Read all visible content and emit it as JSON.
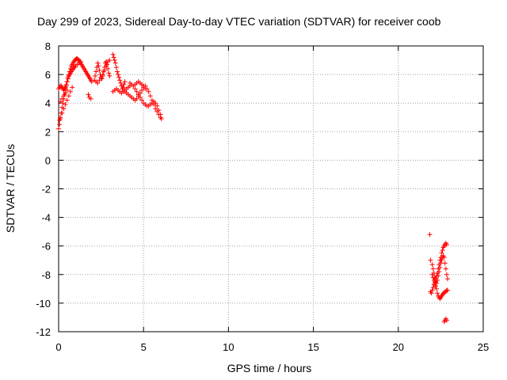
{
  "chart_data": {
    "type": "scatter",
    "title": "Day 299 of 2023, Sidereal Day-to-day VTEC variation (SDTVAR) for receiver coob",
    "xlabel": "GPS time / hours",
    "ylabel": "SDTVAR / TECUs",
    "xlim": [
      0,
      25
    ],
    "ylim": [
      -12,
      8
    ],
    "xticks": [
      0,
      5,
      10,
      15,
      20,
      25
    ],
    "yticks": [
      -12,
      -10,
      -8,
      -6,
      -4,
      -2,
      0,
      2,
      4,
      6,
      8
    ],
    "grid": true,
    "marker": "+",
    "color": "#ff0000",
    "series": [
      {
        "name": "SDTVAR",
        "x": [
          0.0,
          0.05,
          0.1,
          0.15,
          0.2,
          0.25,
          0.3,
          0.35,
          0.4,
          0.45,
          0.5,
          0.55,
          0.6,
          0.65,
          0.7,
          0.75,
          0.8,
          0.85,
          0.9,
          0.95,
          1.0,
          1.05,
          1.1,
          1.15,
          1.2,
          1.25,
          1.3,
          1.35,
          1.4,
          1.45,
          1.5,
          1.55,
          1.6,
          1.65,
          1.7,
          1.75,
          1.8,
          1.85,
          1.9,
          1.95,
          0.0,
          0.05,
          0.1,
          0.15,
          0.2,
          0.25,
          0.3,
          0.35,
          0.4,
          0.45,
          0.5,
          0.55,
          0.6,
          0.65,
          0.7,
          0.75,
          0.8,
          0.85,
          0.9,
          0.95,
          1.0,
          1.1,
          1.2,
          1.3,
          0.05,
          0.1,
          0.2,
          0.3,
          0.4,
          0.5,
          0.6,
          0.7,
          0.8,
          0.1,
          0.2,
          0.3,
          0.4,
          0.5,
          1.75,
          1.8,
          1.9,
          2.1,
          2.15,
          2.2,
          2.25,
          2.3,
          2.35,
          2.4,
          2.45,
          2.5,
          2.55,
          2.6,
          2.65,
          2.7,
          2.75,
          2.8,
          2.85,
          2.9,
          2.95,
          3.0,
          2.2,
          2.3,
          2.4,
          2.5,
          2.6,
          2.7,
          2.8,
          2.9,
          3.0,
          3.2,
          3.25,
          3.3,
          3.35,
          3.4,
          3.45,
          3.5,
          3.55,
          3.6,
          3.65,
          3.7,
          3.75,
          3.8,
          3.85,
          3.9,
          3.2,
          3.3,
          3.4,
          3.5,
          3.6,
          3.7,
          3.8,
          3.9,
          4.0,
          4.1,
          4.2,
          3.9,
          4.0,
          4.1,
          4.2,
          4.3,
          4.4,
          4.5,
          4.6,
          4.7,
          4.8,
          4.9,
          5.0,
          5.1,
          5.2,
          5.3,
          5.4,
          5.5,
          5.6,
          5.7,
          5.8,
          5.9,
          6.0,
          6.05,
          4.2,
          4.3,
          4.4,
          4.5,
          4.6,
          4.7,
          4.8,
          4.9,
          5.0,
          5.1,
          5.2,
          5.3,
          5.4,
          5.5,
          5.6,
          5.7,
          5.8,
          5.9,
          6.0,
          4.5,
          4.6,
          4.7,
          4.8,
          4.9,
          5.0,
          5.1,
          21.9,
          22.0,
          22.05,
          22.1,
          22.15,
          22.2,
          22.25,
          22.3,
          22.35,
          22.4,
          22.45,
          22.5,
          22.55,
          22.6,
          22.65,
          22.7,
          22.75,
          22.8,
          22.85,
          22.9,
          21.9,
          21.95,
          22.0,
          22.05,
          22.1,
          22.15,
          22.2,
          22.25,
          22.3,
          22.35,
          22.4,
          22.45,
          22.5,
          22.55,
          22.6,
          22.65,
          22.7,
          22.75,
          22.8,
          22.85,
          22.0,
          22.05,
          22.1,
          22.15,
          22.2,
          22.25,
          22.3,
          22.35,
          22.4,
          22.45,
          22.5,
          22.55,
          22.6,
          22.65,
          22.7,
          22.75,
          22.8,
          22.85,
          22.9,
          22.7,
          22.75,
          22.8,
          22.85,
          21.85
        ],
        "y": [
          2.2,
          2.5,
          2.9,
          3.3,
          3.7,
          4.0,
          4.3,
          4.6,
          4.9,
          5.2,
          5.5,
          5.8,
          6.0,
          6.2,
          6.4,
          6.6,
          6.7,
          6.8,
          6.9,
          7.0,
          7.05,
          7.1,
          7.1,
          7.05,
          7.0,
          6.9,
          6.8,
          6.7,
          6.6,
          6.5,
          6.4,
          6.3,
          6.2,
          6.1,
          6.0,
          5.9,
          5.8,
          5.7,
          5.6,
          5.5,
          5.0,
          5.1,
          5.2,
          5.2,
          5.1,
          5.0,
          4.9,
          5.0,
          5.1,
          5.3,
          5.5,
          5.7,
          5.9,
          6.0,
          6.1,
          6.2,
          6.3,
          6.4,
          6.5,
          6.5,
          6.6,
          6.7,
          6.8,
          6.9,
          2.8,
          3.0,
          3.3,
          3.6,
          3.9,
          4.2,
          4.5,
          4.8,
          5.1,
          4.1,
          4.3,
          4.5,
          4.7,
          4.9,
          4.6,
          4.4,
          4.3,
          5.6,
          5.9,
          6.2,
          6.5,
          6.8,
          6.6,
          6.3,
          6.0,
          5.8,
          5.7,
          5.9,
          6.2,
          6.5,
          6.8,
          6.9,
          6.7,
          6.4,
          6.1,
          5.9,
          5.5,
          5.4,
          5.6,
          5.8,
          6.0,
          6.3,
          6.6,
          6.9,
          7.0,
          7.4,
          7.2,
          7.0,
          6.8,
          6.5,
          6.2,
          6.0,
          5.8,
          5.6,
          5.4,
          5.2,
          5.0,
          5.1,
          5.3,
          5.5,
          4.8,
          4.9,
          5.0,
          4.9,
          4.8,
          4.7,
          4.8,
          4.9,
          5.0,
          5.1,
          5.2,
          4.8,
          4.7,
          4.6,
          4.5,
          4.4,
          4.3,
          4.2,
          4.3,
          4.5,
          4.7,
          4.9,
          5.1,
          5.2,
          5.0,
          4.8,
          4.5,
          4.2,
          3.9,
          3.6,
          3.4,
          3.2,
          3.0,
          2.9,
          5.4,
          5.3,
          5.2,
          5.0,
          4.8,
          4.6,
          4.4,
          4.2,
          4.0,
          3.9,
          3.8,
          3.8,
          3.9,
          4.0,
          4.1,
          4.0,
          3.8,
          3.5,
          3.2,
          5.3,
          5.4,
          5.5,
          5.4,
          5.3,
          5.2,
          5.0,
          -7.0,
          -7.3,
          -7.6,
          -7.9,
          -8.2,
          -8.5,
          -8.6,
          -8.4,
          -8.1,
          -7.8,
          -7.5,
          -7.2,
          -7.0,
          -6.8,
          -6.7,
          -6.8,
          -7.2,
          -7.6,
          -8.0,
          -8.3,
          -9.2,
          -9.3,
          -9.1,
          -8.9,
          -8.7,
          -8.5,
          -8.3,
          -8.1,
          -7.9,
          -7.6,
          -7.3,
          -7.0,
          -6.8,
          -6.5,
          -6.3,
          -6.1,
          -6.0,
          -5.9,
          -5.8,
          -5.9,
          -8.0,
          -8.2,
          -8.4,
          -8.6,
          -8.8,
          -9.0,
          -9.3,
          -9.5,
          -9.6,
          -9.7,
          -9.6,
          -9.5,
          -9.4,
          -9.3,
          -9.3,
          -9.2,
          -9.2,
          -9.1,
          -9.1,
          -11.3,
          -11.2,
          -11.1,
          -11.2,
          -5.2
        ]
      }
    ]
  }
}
